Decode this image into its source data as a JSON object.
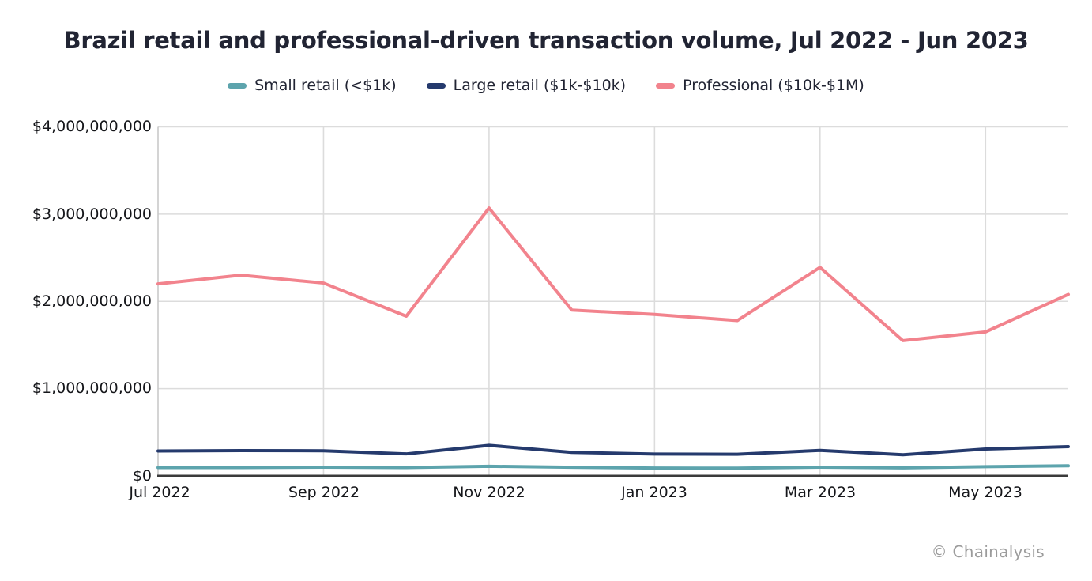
{
  "page": {
    "title": "Brazil retail and professional-driven transaction volume, Jul 2022 - Jun 2023",
    "watermark": "© Chainalysis"
  },
  "chart_data": {
    "type": "line",
    "title": "Brazil retail and professional-driven transaction volume, Jul 2022 - Jun 2023",
    "x": [
      "Jul 2022",
      "Aug 2022",
      "Sep 2022",
      "Oct 2022",
      "Nov 2022",
      "Dec 2022",
      "Jan 2023",
      "Feb 2023",
      "Mar 2023",
      "Apr 2023",
      "May 2023",
      "Jun 2023"
    ],
    "x_tick_labels": [
      "Jul 2022",
      "Sep 2022",
      "Nov 2022",
      "Jan 2023",
      "Mar 2023",
      "May 2023"
    ],
    "y_tick_labels": [
      "$0",
      "$1,000,000,000",
      "$2,000,000,000",
      "$3,000,000,000",
      "$4,000,000,000"
    ],
    "ylim": [
      0,
      4000000000
    ],
    "grid": true,
    "legend_position": "top",
    "series": [
      {
        "name": "Small retail (<$1k)",
        "color": "#5da4ad",
        "values": [
          95000000,
          95000000,
          100000000,
          95000000,
          110000000,
          98000000,
          90000000,
          88000000,
          100000000,
          92000000,
          105000000,
          115000000
        ]
      },
      {
        "name": "Large retail ($1k-$10k)",
        "color": "#253a6d",
        "values": [
          285000000,
          290000000,
          288000000,
          252000000,
          350000000,
          270000000,
          250000000,
          248000000,
          292000000,
          242000000,
          308000000,
          335000000
        ]
      },
      {
        "name": "Professional ($10k-$1M)",
        "color": "#f2838d",
        "values": [
          2200000000,
          2300000000,
          2210000000,
          1830000000,
          3070000000,
          1900000000,
          1850000000,
          1780000000,
          2390000000,
          1550000000,
          1650000000,
          2080000000
        ]
      }
    ]
  }
}
